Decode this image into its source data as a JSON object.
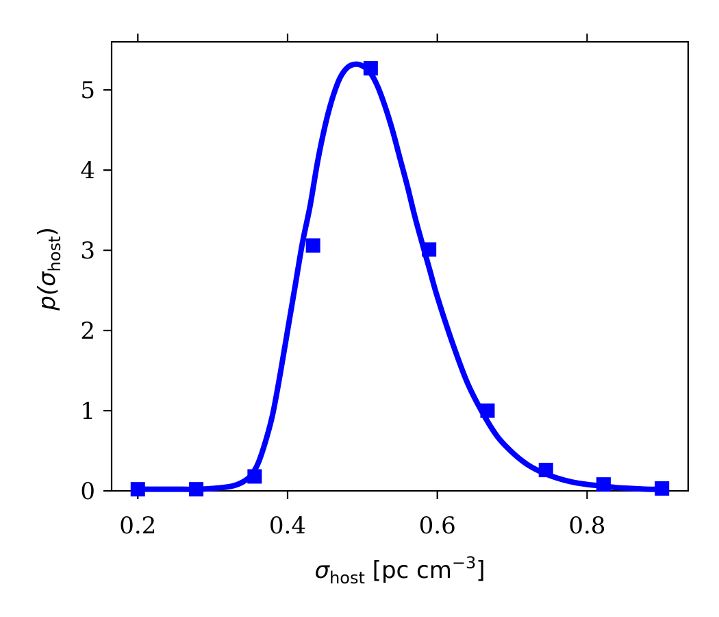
{
  "chart_data": {
    "type": "line",
    "title": "",
    "xlabel": {
      "symbol": "σ",
      "subscript": "host",
      "units_prefix": " [pc cm",
      "units_exponent": "−3",
      "units_suffix": "]"
    },
    "ylabel": {
      "func": "p(",
      "symbol": "σ",
      "subscript": "host",
      "close": ")"
    },
    "xlim": [
      0.165,
      0.935
    ],
    "ylim": [
      0,
      5.6
    ],
    "xticks": [
      0.2,
      0.4,
      0.6,
      0.8
    ],
    "xtick_labels": [
      "0.2",
      "0.4",
      "0.6",
      "0.8"
    ],
    "yticks": [
      0,
      1,
      2,
      3,
      4,
      5
    ],
    "ytick_labels": [
      "0",
      "1",
      "2",
      "3",
      "4",
      "5"
    ],
    "grid": false,
    "legend": "none",
    "series": [
      {
        "style": "line",
        "color": "#0000ff",
        "x": [
          0.2,
          0.22,
          0.24,
          0.26,
          0.28,
          0.3,
          0.32,
          0.33,
          0.34,
          0.35,
          0.36,
          0.37,
          0.38,
          0.39,
          0.4,
          0.41,
          0.42,
          0.43,
          0.44,
          0.45,
          0.46,
          0.47,
          0.48,
          0.49,
          0.5,
          0.51,
          0.52,
          0.53,
          0.54,
          0.55,
          0.56,
          0.57,
          0.58,
          0.59,
          0.6,
          0.62,
          0.64,
          0.66,
          0.68,
          0.7,
          0.72,
          0.74,
          0.76,
          0.78,
          0.8,
          0.82,
          0.84,
          0.86,
          0.88,
          0.9
        ],
        "y": [
          0.02,
          0.02,
          0.02,
          0.02,
          0.02,
          0.03,
          0.05,
          0.07,
          0.11,
          0.18,
          0.33,
          0.6,
          0.95,
          1.45,
          2.0,
          2.55,
          3.1,
          3.55,
          4.1,
          4.55,
          4.9,
          5.15,
          5.28,
          5.32,
          5.3,
          5.22,
          5.05,
          4.8,
          4.5,
          4.15,
          3.8,
          3.42,
          3.08,
          2.75,
          2.42,
          1.85,
          1.35,
          0.98,
          0.68,
          0.48,
          0.33,
          0.23,
          0.16,
          0.11,
          0.08,
          0.06,
          0.04,
          0.03,
          0.02,
          0.02
        ]
      },
      {
        "style": "markers",
        "marker": "square",
        "color": "#0000ff",
        "x": [
          0.2,
          0.278,
          0.356,
          0.434,
          0.511,
          0.589,
          0.667,
          0.745,
          0.822,
          0.9
        ],
        "y": [
          0.02,
          0.02,
          0.18,
          3.06,
          5.27,
          3.01,
          1.0,
          0.26,
          0.08,
          0.03
        ]
      }
    ]
  }
}
